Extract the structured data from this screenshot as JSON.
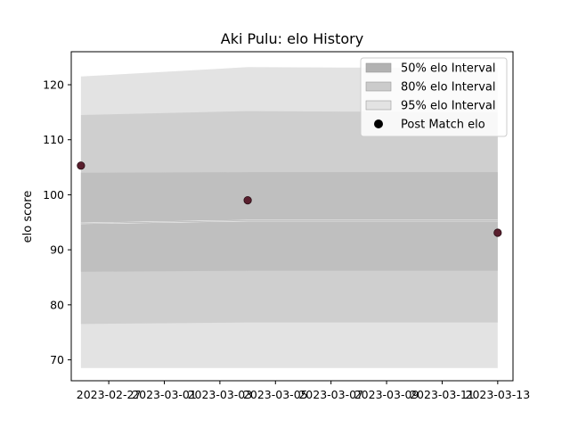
{
  "chart_data": {
    "type": "area",
    "title": "Aki Pulu: elo History",
    "xlabel": "",
    "ylabel": "elo score",
    "x_ticks": [
      "2023-02-27",
      "2023-03-01",
      "2023-03-03",
      "2023-03-05",
      "2023-03-07",
      "2023-03-09",
      "2023-03-11",
      "2023-03-13"
    ],
    "xlim": [
      "2023-02-26",
      "2023-03-13"
    ],
    "ylim": [
      66.2,
      126.0
    ],
    "y_ticks": [
      70,
      80,
      90,
      100,
      110,
      120
    ],
    "grid": false,
    "legend_position": "top-right",
    "x": [
      "2023-02-26",
      "2023-03-04",
      "2023-03-13"
    ],
    "mean": [
      94.8,
      95.3,
      95.3
    ],
    "series": [
      {
        "name": "95% elo Interval",
        "lower": [
          68.5,
          68.5,
          68.5
        ],
        "upper": [
          121.5,
          123.2,
          123.0
        ],
        "color": "#e3e3e3"
      },
      {
        "name": "80% elo Interval",
        "lower": [
          76.5,
          76.8,
          76.8
        ],
        "upper": [
          114.5,
          115.2,
          115.0
        ],
        "color": "#cfcfcf"
      },
      {
        "name": "50% elo Interval",
        "lower": [
          86.0,
          86.2,
          86.2
        ],
        "upper": [
          104.0,
          104.1,
          104.1
        ],
        "color": "#bfbfbf"
      }
    ],
    "points": {
      "name": "Post Match elo",
      "color": "#5a1f2e",
      "x": [
        "2023-02-26",
        "2023-03-04",
        "2023-03-13"
      ],
      "y": [
        105.3,
        99.0,
        93.1
      ]
    },
    "legend": [
      {
        "label": "50% elo Interval",
        "kind": "patch",
        "color": "#b2b2b2"
      },
      {
        "label": "80% elo Interval",
        "kind": "patch",
        "color": "#cbcbcb"
      },
      {
        "label": "95% elo Interval",
        "kind": "patch",
        "color": "#e3e3e3"
      },
      {
        "label": "Post Match elo",
        "kind": "marker",
        "color": "#000000"
      }
    ]
  }
}
